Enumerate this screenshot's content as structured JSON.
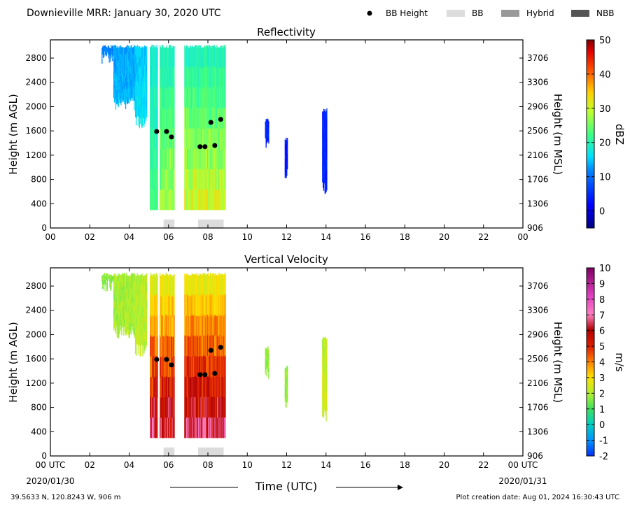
{
  "header": {
    "title": "Downieville MRR:  January 30, 2020 UTC",
    "legend": [
      {
        "label": "BB Height",
        "kind": "dot",
        "color": "#000000"
      },
      {
        "label": "BB",
        "kind": "box",
        "color": "#dcdcdc"
      },
      {
        "label": "Hybrid",
        "kind": "box",
        "color": "#999999"
      },
      {
        "label": "NBB",
        "kind": "box",
        "color": "#555555"
      }
    ]
  },
  "colors": {
    "bb_box": "#dcdcdc",
    "bb_dot": "#000000"
  },
  "chart_data": [
    {
      "type": "heatmap",
      "title": "Reflectivity",
      "ylabel": "Height (m AGL)",
      "y2label": "Height (m MSL)",
      "x_ticks": [
        "00",
        "02",
        "04",
        "06",
        "08",
        "10",
        "12",
        "14",
        "16",
        "18",
        "20",
        "22",
        "00"
      ],
      "y_ticks": [
        0,
        400,
        800,
        1200,
        1600,
        2000,
        2400,
        2800
      ],
      "y2_ticks": [
        906,
        1306,
        1706,
        2106,
        2506,
        2906,
        3306,
        3706
      ],
      "xlim": [
        0,
        24
      ],
      "ylim": [
        0,
        3100
      ],
      "colorbar": {
        "label": "dBZ",
        "ticks": [
          0,
          10,
          20,
          30,
          40,
          50
        ],
        "range": [
          -5,
          50
        ]
      },
      "colormap": "jet",
      "bb_height_points": [
        {
          "x": 5.4,
          "y": 1590
        },
        {
          "x": 5.9,
          "y": 1590
        },
        {
          "x": 6.15,
          "y": 1500
        },
        {
          "x": 7.6,
          "y": 1340
        },
        {
          "x": 7.85,
          "y": 1340
        },
        {
          "x": 8.15,
          "y": 1740
        },
        {
          "x": 8.35,
          "y": 1360
        },
        {
          "x": 8.65,
          "y": 1790
        }
      ],
      "bb_periods": [
        [
          5.75,
          6.3
        ],
        [
          7.5,
          8.8
        ]
      ]
    },
    {
      "type": "heatmap",
      "title": "Vertical Velocity",
      "ylabel": "Height (m AGL)",
      "y2label": "Height (m MSL)",
      "x_ticks": [
        "00 UTC",
        "02",
        "04",
        "06",
        "08",
        "10",
        "12",
        "14",
        "16",
        "18",
        "20",
        "22",
        "00 UTC"
      ],
      "x_subticks": [
        "2020/01/30",
        "2020/01/31"
      ],
      "xlabel": "Time (UTC)",
      "y_ticks": [
        0,
        400,
        800,
        1200,
        1600,
        2000,
        2400,
        2800
      ],
      "y2_ticks": [
        906,
        1306,
        1706,
        2106,
        2506,
        2906,
        3306,
        3706
      ],
      "xlim": [
        0,
        24
      ],
      "ylim": [
        0,
        3100
      ],
      "colorbar": {
        "label": "m/s",
        "ticks": [
          -2,
          -1,
          0,
          1,
          2,
          3,
          4,
          5,
          6,
          7,
          8,
          9,
          10
        ],
        "range": [
          -2,
          10
        ]
      },
      "colormap": "velocity",
      "bb_height_points": [
        {
          "x": 5.4,
          "y": 1590
        },
        {
          "x": 5.9,
          "y": 1590
        },
        {
          "x": 6.15,
          "y": 1500
        },
        {
          "x": 7.6,
          "y": 1340
        },
        {
          "x": 7.85,
          "y": 1340
        },
        {
          "x": 8.15,
          "y": 1740
        },
        {
          "x": 8.35,
          "y": 1360
        },
        {
          "x": 8.65,
          "y": 1790
        }
      ],
      "bb_periods": [
        [
          5.75,
          6.3
        ],
        [
          7.5,
          8.8
        ]
      ]
    }
  ],
  "footer": {
    "location": "39.5633 N, 120.8243 W, 906 m",
    "creation": "Plot creation date: Aug 01, 2024 16:30:43 UTC"
  }
}
